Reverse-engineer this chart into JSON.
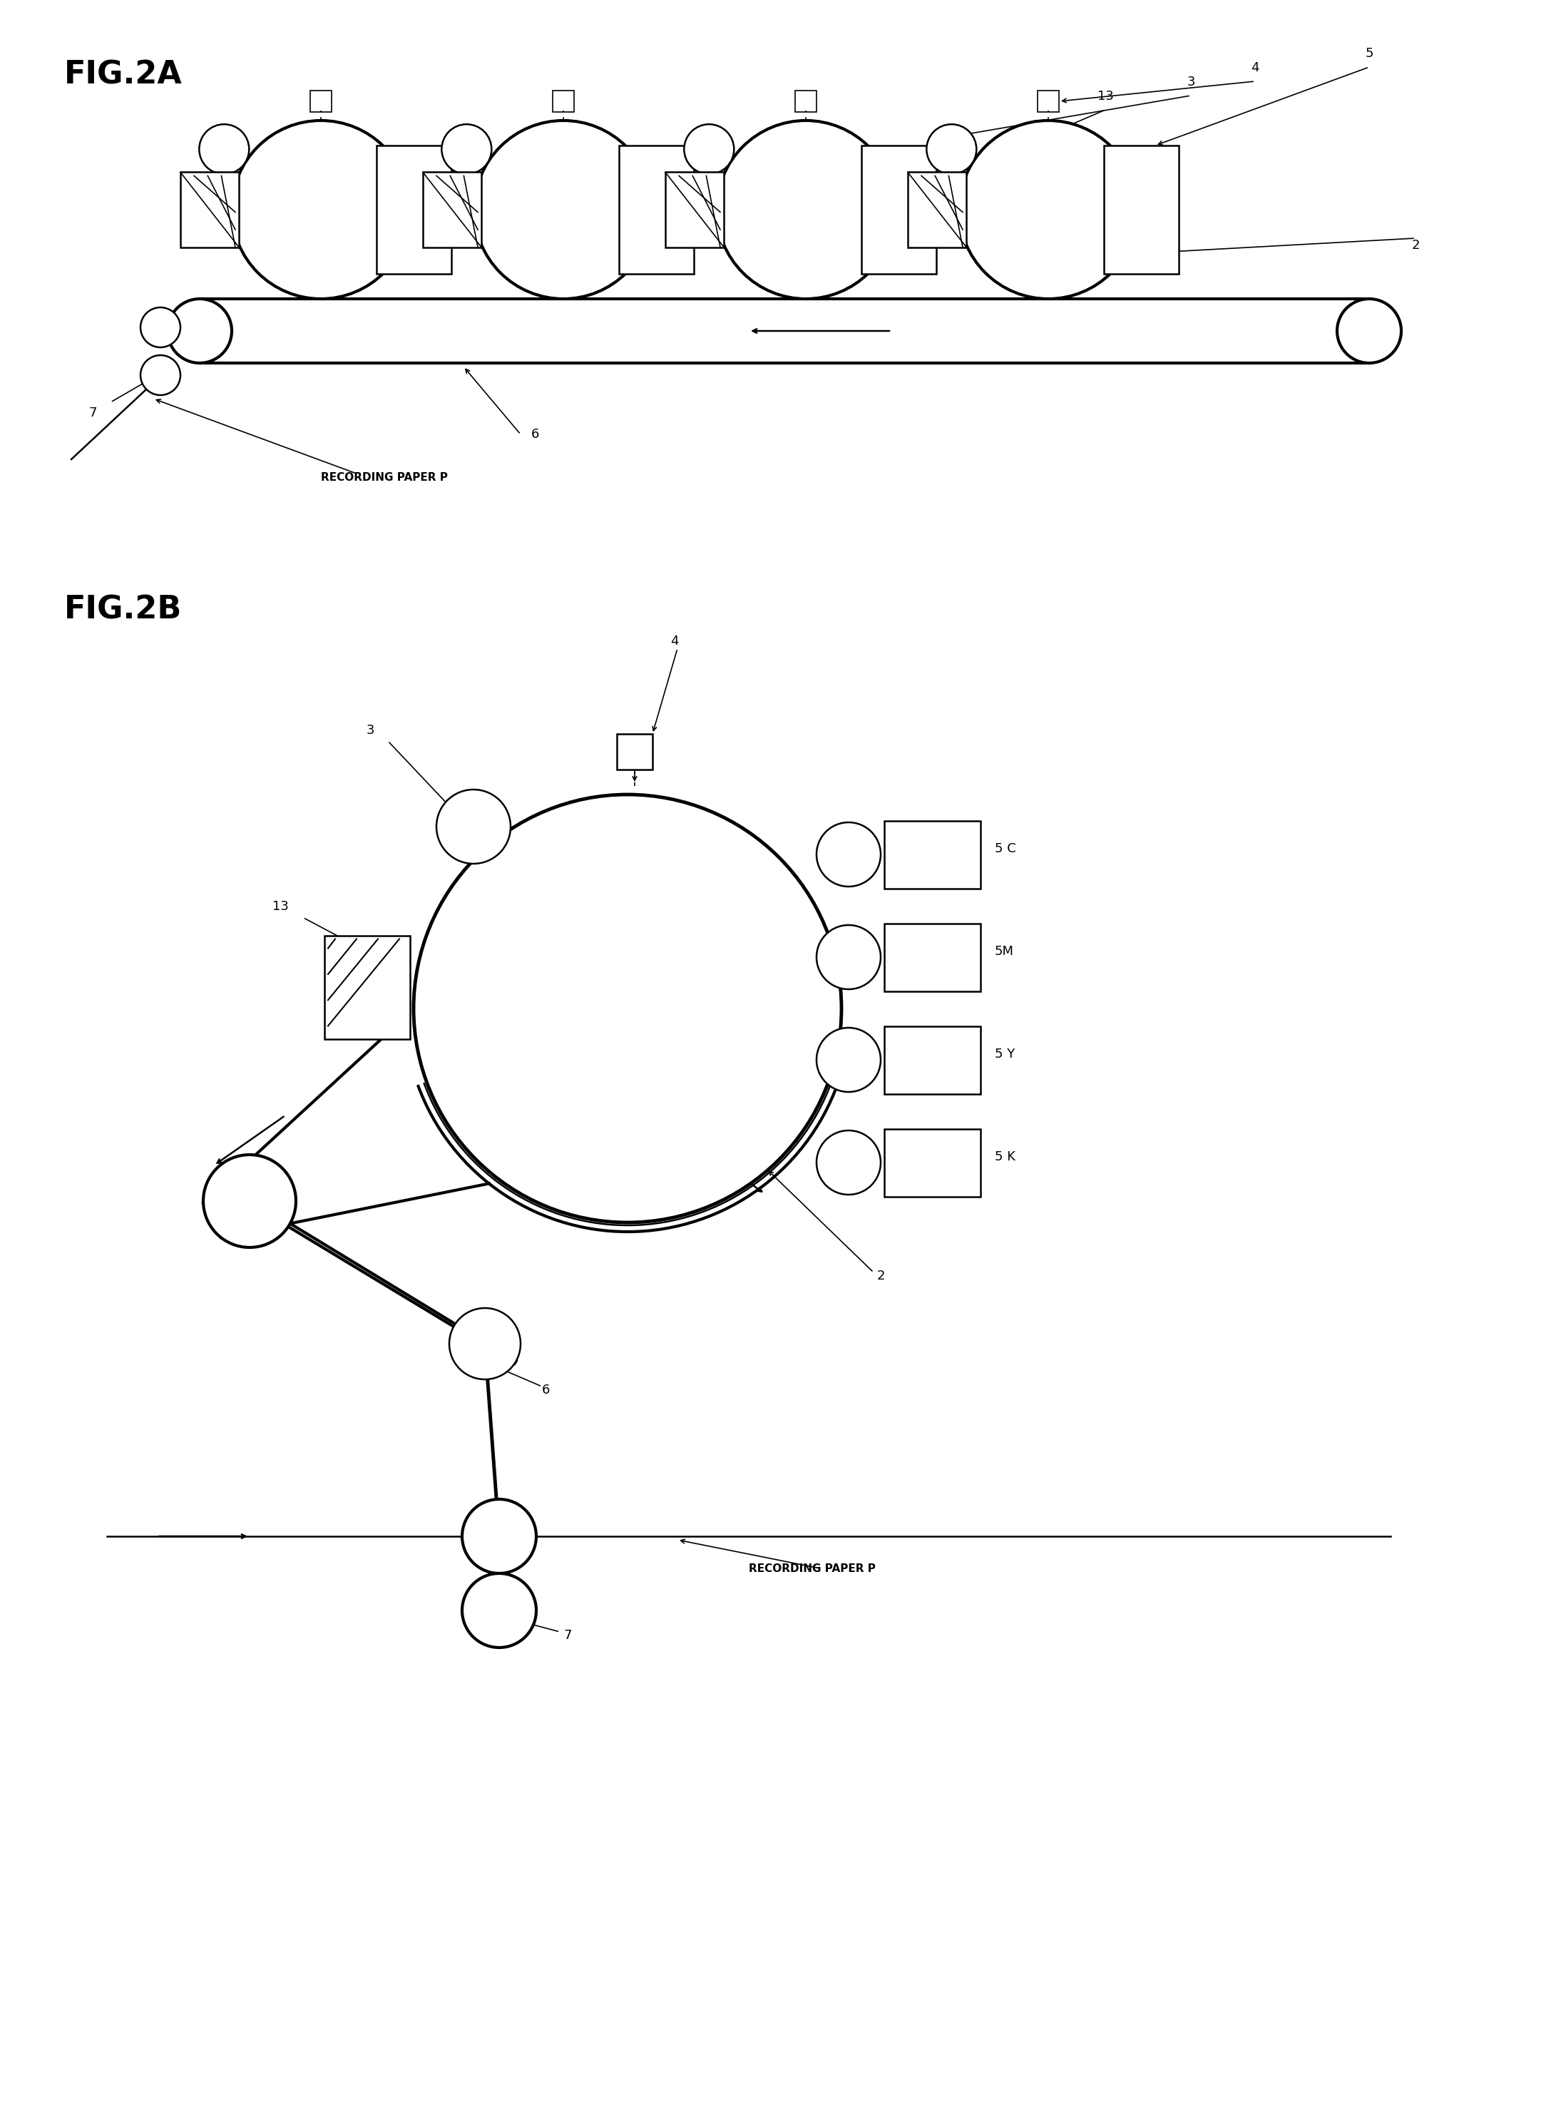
{
  "fig_title_a": "FIG.2A",
  "fig_title_b": "FIG.2B",
  "label_2": "2",
  "label_3": "3",
  "label_4": "4",
  "label_5": "5",
  "label_6": "6",
  "label_7": "7",
  "label_13": "13",
  "label_5c": "5 C",
  "label_5m": "5M",
  "label_5y": "5 Y",
  "label_5k": "5 K",
  "label_rec": "RECORDING PAPER P",
  "bg_color": "#ffffff",
  "line_color": "#000000",
  "fig_label_fontsize": 32,
  "num_label_fontsize": 13,
  "rec_label_fontsize": 11
}
